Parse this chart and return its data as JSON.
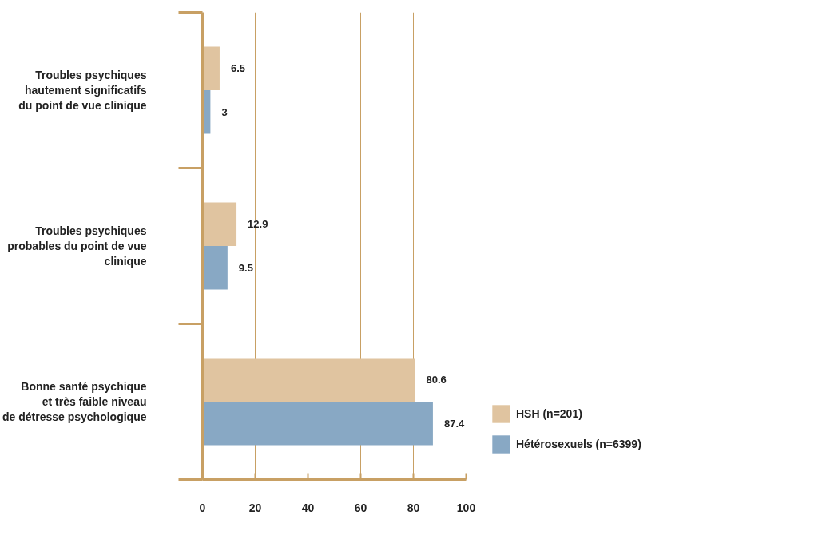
{
  "chart_data": {
    "type": "bar",
    "orientation": "horizontal",
    "categories": [
      "Troubles psychiques\nhautement significatifs\ndu point de vue clinique",
      "Troubles psychiques\nprobables du point de vue\nclinique",
      "Bonne santé psychique\net très faible niveau\nde détresse psychologique"
    ],
    "series": [
      {
        "name": "HSH (n=201)",
        "color": "#e0c4a0",
        "values": [
          6.5,
          12.9,
          80.6
        ]
      },
      {
        "name": "Hétérosexuels (n=6399)",
        "color": "#88a8c4",
        "values": [
          3,
          9.5,
          87.4
        ]
      }
    ],
    "xlim": [
      0,
      100
    ],
    "xticks": [
      0,
      20,
      40,
      60,
      80,
      100
    ],
    "grid": "x",
    "legend": "right",
    "data_labels": true
  }
}
